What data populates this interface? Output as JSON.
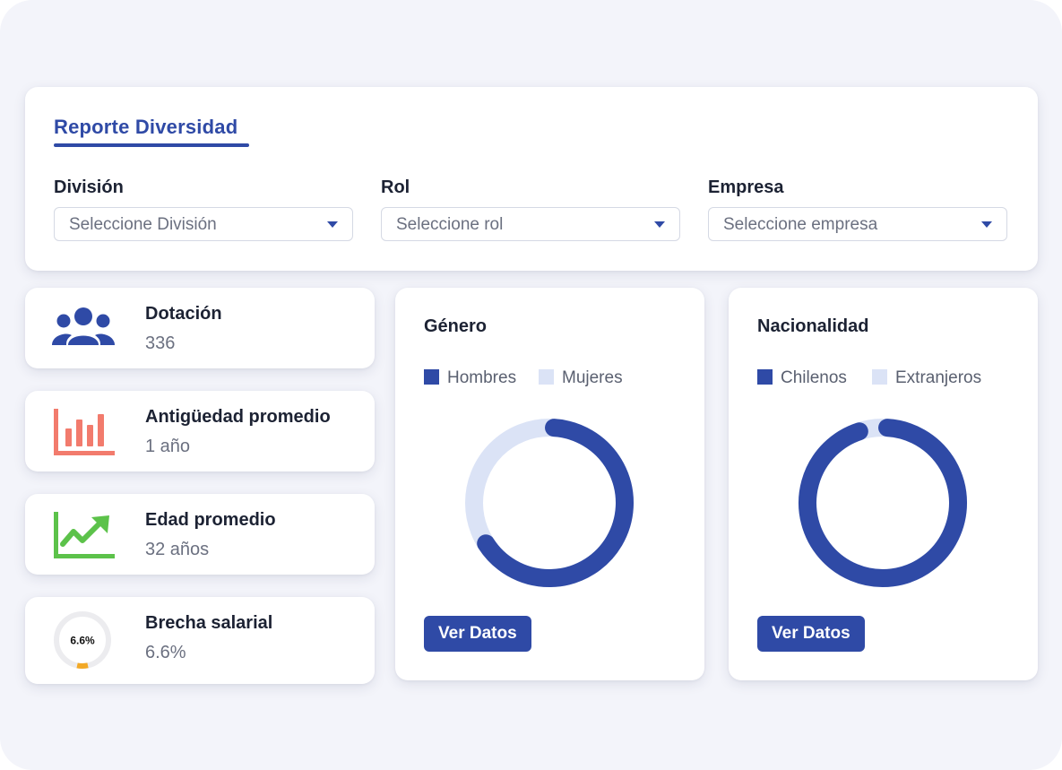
{
  "header": {
    "title": "Reporte Diversidad"
  },
  "filters": [
    {
      "label": "División",
      "placeholder": "Seleccione División"
    },
    {
      "label": "Rol",
      "placeholder": "Seleccione rol"
    },
    {
      "label": "Empresa",
      "placeholder": "Seleccione empresa"
    }
  ],
  "stats": [
    {
      "label": "Dotación",
      "value": "336",
      "icon": "people-icon",
      "color": "#2f4aa6"
    },
    {
      "label": "Antigüedad promedio",
      "value": "1 año",
      "icon": "bar-chart-icon",
      "color": "#f27b6d"
    },
    {
      "label": "Edad promedio",
      "value": "32 años",
      "icon": "trend-up-icon",
      "color": "#5cc24a"
    },
    {
      "label": "Brecha salarial",
      "value": "6.6%",
      "icon": "progress-ring-icon",
      "ring_text": "6.6%",
      "ring_fraction": 0.066,
      "color": "#f2a927"
    }
  ],
  "colors": {
    "accent": "#2f4aa6",
    "accent_light": "#dbe3f6"
  },
  "chart_data": [
    {
      "type": "pie",
      "title": "Género",
      "categories": [
        "Hombres",
        "Mujeres"
      ],
      "values": [
        65,
        35
      ],
      "colors": [
        "#2f4aa6",
        "#dbe3f6"
      ],
      "legend": "top",
      "button_label": "Ver Datos"
    },
    {
      "type": "pie",
      "title": "Nacionalidad",
      "categories": [
        "Chilenos",
        "Extranjeros"
      ],
      "values": [
        94,
        6
      ],
      "colors": [
        "#2f4aa6",
        "#dbe3f6"
      ],
      "legend": "top",
      "button_label": "Ver Datos"
    }
  ]
}
